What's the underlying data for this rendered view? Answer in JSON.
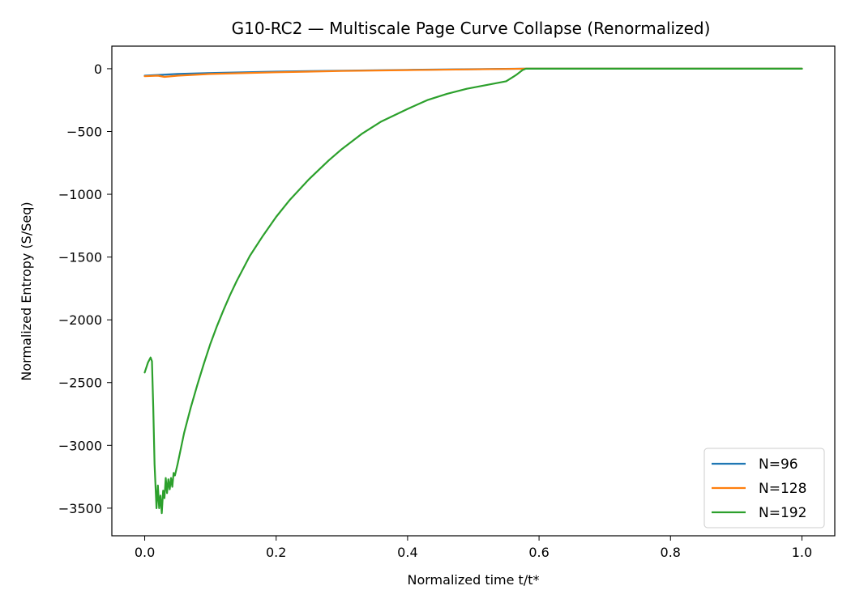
{
  "chart_data": {
    "type": "line",
    "title": "G10-RC2 — Multiscale Page Curve Collapse (Renormalized)",
    "xlabel": "Normalized time t/t*",
    "ylabel": "Normalized Entropy (S/Seq)",
    "xlim": [
      -0.05,
      1.05
    ],
    "ylim": [
      -3720,
      180
    ],
    "xticks": [
      0.0,
      0.2,
      0.4,
      0.6,
      0.8,
      1.0
    ],
    "xtick_labels": [
      "0.0",
      "0.2",
      "0.4",
      "0.6",
      "0.8",
      "1.0"
    ],
    "yticks": [
      0,
      -500,
      -1000,
      -1500,
      -2000,
      -2500,
      -3000,
      -3500
    ],
    "ytick_labels": [
      "0",
      "−500",
      "−1000",
      "−1500",
      "−2000",
      "−2500",
      "−3000",
      "−3500"
    ],
    "grid": false,
    "legend": "lower-right",
    "series": [
      {
        "name": "N=96",
        "color": "#1f77b4",
        "x": [
          0.0,
          0.05,
          0.1,
          0.15,
          0.2,
          0.3,
          0.4,
          0.5,
          0.58,
          0.7,
          0.85,
          1.0
        ],
        "y": [
          -55,
          -42,
          -34,
          -28,
          -23,
          -15,
          -9,
          -4,
          0,
          0,
          0,
          0
        ]
      },
      {
        "name": "N=128",
        "color": "#ff7f0e",
        "x": [
          0.0,
          0.02,
          0.03,
          0.05,
          0.1,
          0.2,
          0.3,
          0.4,
          0.5,
          0.58,
          0.7,
          0.85,
          1.0
        ],
        "y": [
          -60,
          -55,
          -65,
          -55,
          -42,
          -28,
          -18,
          -11,
          -5,
          0,
          0,
          0,
          0
        ]
      },
      {
        "name": "N=192",
        "color": "#2ca02c",
        "x": [
          0.0,
          0.005,
          0.009,
          0.011,
          0.013,
          0.015,
          0.018,
          0.02,
          0.022,
          0.024,
          0.026,
          0.028,
          0.03,
          0.032,
          0.034,
          0.036,
          0.038,
          0.04,
          0.042,
          0.044,
          0.046,
          0.05,
          0.06,
          0.07,
          0.08,
          0.09,
          0.1,
          0.11,
          0.12,
          0.13,
          0.14,
          0.15,
          0.16,
          0.18,
          0.2,
          0.22,
          0.25,
          0.28,
          0.3,
          0.33,
          0.36,
          0.4,
          0.43,
          0.46,
          0.49,
          0.52,
          0.55,
          0.565,
          0.575,
          0.58,
          0.6,
          0.7,
          0.8,
          0.9,
          1.0
        ],
        "y": [
          -2420,
          -2340,
          -2300,
          -2330,
          -2700,
          -3150,
          -3500,
          -3320,
          -3500,
          -3400,
          -3540,
          -3360,
          -3420,
          -3260,
          -3380,
          -3270,
          -3350,
          -3260,
          -3330,
          -3220,
          -3240,
          -3150,
          -2900,
          -2700,
          -2520,
          -2350,
          -2190,
          -2050,
          -1920,
          -1800,
          -1690,
          -1590,
          -1490,
          -1330,
          -1180,
          -1050,
          -880,
          -730,
          -640,
          -520,
          -420,
          -320,
          -250,
          -200,
          -160,
          -130,
          -100,
          -50,
          -10,
          0,
          0,
          0,
          0,
          0,
          0
        ]
      }
    ]
  }
}
